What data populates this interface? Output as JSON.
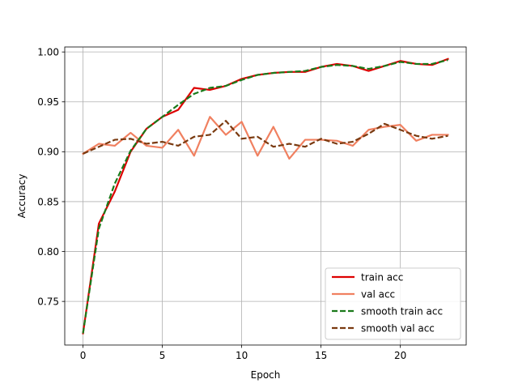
{
  "chart_data": {
    "type": "line",
    "title": "",
    "xlabel": "Epoch",
    "ylabel": "Accuracy",
    "xlim": [
      -1.15,
      24.15
    ],
    "ylim": [
      0.7063,
      1.005
    ],
    "xticks": [
      0,
      5,
      10,
      15,
      20
    ],
    "yticks": [
      0.75,
      0.8,
      0.85,
      0.9,
      0.95,
      1.0
    ],
    "ytick_labels": [
      "0.75",
      "0.80",
      "0.85",
      "0.90",
      "0.95",
      "1.00"
    ],
    "grid": true,
    "legend_position": "lower-right",
    "x": [
      0,
      1,
      2,
      3,
      4,
      5,
      6,
      7,
      8,
      9,
      10,
      11,
      12,
      13,
      14,
      15,
      16,
      17,
      18,
      19,
      20,
      21,
      22,
      23
    ],
    "series": [
      {
        "name": "train acc",
        "color": "#dd0000",
        "style": "solid",
        "values": [
          0.718,
          0.828,
          0.86,
          0.9,
          0.923,
          0.935,
          0.942,
          0.964,
          0.962,
          0.966,
          0.973,
          0.977,
          0.979,
          0.98,
          0.98,
          0.985,
          0.988,
          0.986,
          0.981,
          0.986,
          0.991,
          0.988,
          0.987,
          0.993
        ]
      },
      {
        "name": "val acc",
        "color": "#f08060",
        "style": "solid",
        "values": [
          0.898,
          0.908,
          0.906,
          0.919,
          0.906,
          0.904,
          0.922,
          0.896,
          0.935,
          0.917,
          0.93,
          0.896,
          0.925,
          0.893,
          0.912,
          0.912,
          0.911,
          0.906,
          0.922,
          0.925,
          0.927,
          0.911,
          0.917,
          0.917
        ]
      },
      {
        "name": "smooth train acc",
        "color": "#1a7a1a",
        "style": "dashed",
        "values": [
          0.718,
          0.823,
          0.868,
          0.901,
          0.923,
          0.935,
          0.947,
          0.958,
          0.964,
          0.966,
          0.972,
          0.977,
          0.979,
          0.98,
          0.981,
          0.985,
          0.987,
          0.986,
          0.983,
          0.986,
          0.99,
          0.988,
          0.988,
          0.992
        ]
      },
      {
        "name": "smooth val acc",
        "color": "#7a3a10",
        "style": "dashed",
        "values": [
          0.898,
          0.905,
          0.912,
          0.913,
          0.908,
          0.91,
          0.906,
          0.915,
          0.917,
          0.931,
          0.913,
          0.915,
          0.905,
          0.908,
          0.905,
          0.913,
          0.908,
          0.91,
          0.918,
          0.928,
          0.922,
          0.916,
          0.913,
          0.916
        ]
      }
    ]
  }
}
